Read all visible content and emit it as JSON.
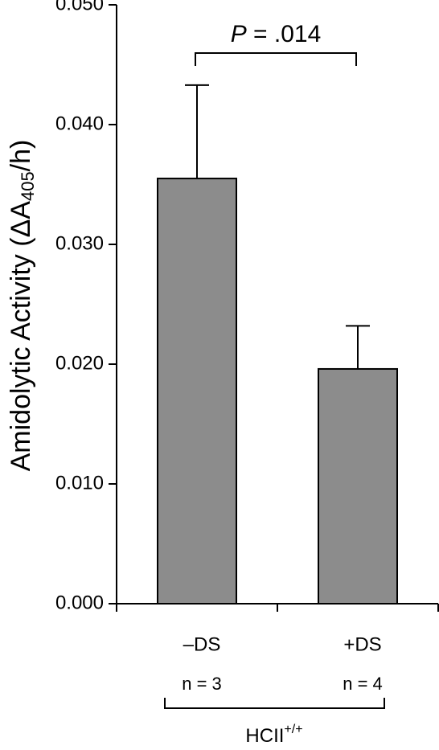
{
  "chart_data": {
    "type": "bar",
    "y_label": {
      "text": "Amidolytic Activity (ΔA",
      "subscript": "405",
      "suffix": "/h)"
    },
    "annotation": {
      "symbol": "P",
      "text": "= .014"
    },
    "categories": [
      "–DS",
      "+DS"
    ],
    "sample_sizes": [
      "n = 3",
      "n = 4"
    ],
    "group_label": {
      "text": "HCII",
      "superscript": "+/+"
    },
    "values": [
      0.0355,
      0.0196
    ],
    "errors": [
      0.0078,
      0.0036
    ],
    "color": "#8c8c8c",
    "ylim": [
      0,
      0.05
    ],
    "yticks": [
      {
        "value": 0,
        "label": "0.000"
      },
      {
        "value": 0.01,
        "label": "0.010"
      },
      {
        "value": 0.02,
        "label": "0.020"
      },
      {
        "value": 0.03,
        "label": "0.030"
      },
      {
        "value": 0.04,
        "label": "0.040"
      },
      {
        "value": 0.05,
        "label": "0.050"
      }
    ]
  }
}
